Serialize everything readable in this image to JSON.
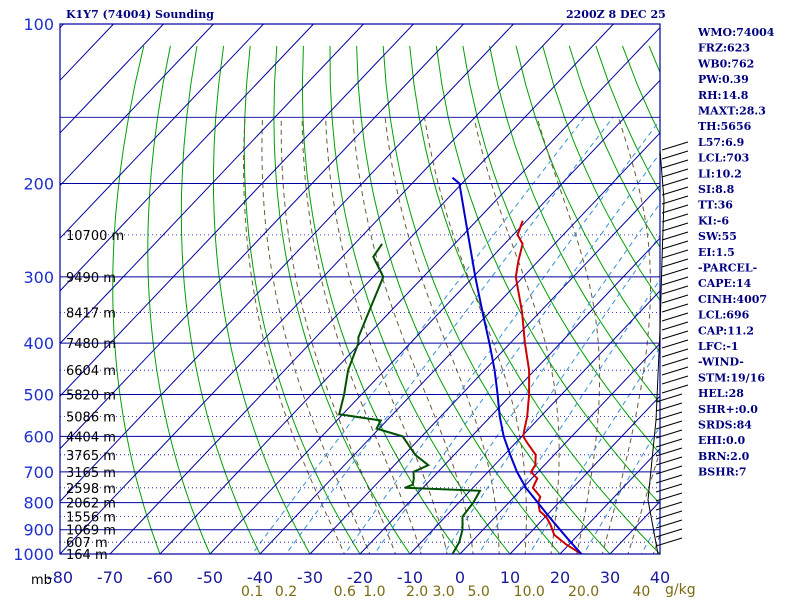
{
  "header": {
    "station": "K1Y7 (74004) Sounding",
    "time": "2200Z  8 DEC 25"
  },
  "indices": [
    "WMO:74004",
    "FRZ:623",
    "WB0:762",
    "PW:0.39",
    "RH:14.8",
    "MAXT:28.3",
    "TH:5656",
    "L57:6.9",
    "LCL:703",
    "LI:10.2",
    "SI:8.8",
    "TT:36",
    "KI:-6",
    "SW:55",
    "EI:1.5",
    "-PARCEL-",
    "CAPE:14",
    "CINH:4007",
    "LCL:696",
    "CAP:11.2",
    "LFC:-1",
    "-WIND-",
    "STM:19/16",
    "HEL:28",
    "SHR+:0.0",
    "SRDS:84",
    "EHI:0.0",
    "BRN:2.0",
    "BSHR:7"
  ],
  "colors": {
    "frame": "#0000a0",
    "isotherm": "#0000a0",
    "dry_adiabat": "#00a000",
    "moist_adiabat": "#6b5a3a",
    "mixing_ratio": "#3a8fd0",
    "temperature": "#cc0000",
    "dewpoint": "#005000",
    "parcel": "#0000cc",
    "wind": "#000000"
  },
  "chart_data": {
    "type": "line",
    "chart_kind": "skew-T log-P sounding",
    "y_scale": "log",
    "ylim": [
      1000,
      100
    ],
    "xlim": [
      -80,
      40
    ],
    "y_axis_unit": "mb",
    "pressure_ticks": [
      1000,
      900,
      800,
      700,
      600,
      500,
      400,
      300,
      200,
      100
    ],
    "temperature_ticks": [
      -80,
      -70,
      -60,
      -50,
      -40,
      -30,
      -20,
      -10,
      0,
      10,
      20,
      30,
      40
    ],
    "mixing_ratio_ticks": [
      "0.1",
      "0.2",
      "0.6",
      "1.0",
      "2.0",
      "3.0",
      "5.0",
      "10.0",
      "20.0",
      "40"
    ],
    "mixing_ratio_unit": "g/kg",
    "heights": [
      {
        "p": 1000,
        "label": "164 m"
      },
      {
        "p": 950,
        "label": "607 m"
      },
      {
        "p": 900,
        "label": "1069 m"
      },
      {
        "p": 850,
        "label": "1556 m"
      },
      {
        "p": 800,
        "label": "2062 m"
      },
      {
        "p": 750,
        "label": "2598 m"
      },
      {
        "p": 700,
        "label": "3165 m"
      },
      {
        "p": 650,
        "label": "3765 m"
      },
      {
        "p": 600,
        "label": "4404 m"
      },
      {
        "p": 550,
        "label": "5086 m"
      },
      {
        "p": 500,
        "label": "5820 m"
      },
      {
        "p": 450,
        "label": "6604 m"
      },
      {
        "p": 400,
        "label": "7480 m"
      },
      {
        "p": 350,
        "label": "8417 m"
      },
      {
        "p": 300,
        "label": "9490 m"
      },
      {
        "p": 250,
        "label": "10700 m"
      }
    ],
    "series": [
      {
        "key": "temperature",
        "points": [
          [
            1000,
            24.3
          ],
          [
            960,
            19.5
          ],
          [
            920,
            15.2
          ],
          [
            880,
            12.5
          ],
          [
            850,
            10.1
          ],
          [
            830,
            7.8
          ],
          [
            800,
            5.9
          ],
          [
            780,
            5.2
          ],
          [
            750,
            2.0
          ],
          [
            740,
            1.7
          ],
          [
            720,
            1.1
          ],
          [
            700,
            -1.4
          ],
          [
            680,
            -1.8
          ],
          [
            650,
            -3.7
          ],
          [
            620,
            -7.3
          ],
          [
            600,
            -9.7
          ],
          [
            580,
            -10.9
          ],
          [
            550,
            -12.7
          ],
          [
            500,
            -16.5
          ],
          [
            450,
            -21.1
          ],
          [
            400,
            -27.1
          ],
          [
            350,
            -33.5
          ],
          [
            300,
            -41.5
          ],
          [
            280,
            -44.0
          ],
          [
            260,
            -46.4
          ],
          [
            250,
            -49.1
          ],
          [
            235,
            -50.8
          ]
        ]
      },
      {
        "key": "dewpoint",
        "points": [
          [
            1000,
            -1.5
          ],
          [
            950,
            -2.4
          ],
          [
            900,
            -4.1
          ],
          [
            850,
            -6.6
          ],
          [
            800,
            -7.1
          ],
          [
            760,
            -8.0
          ],
          [
            750,
            -23.6
          ],
          [
            740,
            -22.6
          ],
          [
            720,
            -23.6
          ],
          [
            700,
            -24.9
          ],
          [
            680,
            -23.2
          ],
          [
            650,
            -27.8
          ],
          [
            600,
            -33.8
          ],
          [
            580,
            -40.5
          ],
          [
            560,
            -41.2
          ],
          [
            545,
            -50.7
          ],
          [
            500,
            -53.5
          ],
          [
            450,
            -57.3
          ],
          [
            400,
            -60.4
          ],
          [
            390,
            -61.5
          ],
          [
            350,
            -64.2
          ],
          [
            300,
            -68.0
          ],
          [
            275,
            -73.8
          ],
          [
            260,
            -74.5
          ]
        ]
      },
      {
        "key": "parcel",
        "points": [
          [
            1000,
            24.3
          ],
          [
            950,
            19.9
          ],
          [
            900,
            15.4
          ],
          [
            850,
            10.7
          ],
          [
            800,
            5.8
          ],
          [
            750,
            0.6
          ],
          [
            700,
            -4.2
          ],
          [
            650,
            -8.8
          ],
          [
            600,
            -13.6
          ],
          [
            550,
            -18.2
          ],
          [
            500,
            -22.8
          ],
          [
            450,
            -28.0
          ],
          [
            400,
            -34.2
          ],
          [
            350,
            -41.4
          ],
          [
            300,
            -49.6
          ],
          [
            250,
            -59.0
          ],
          [
            200,
            -70.5
          ],
          [
            195,
            -73.0
          ]
        ]
      }
    ]
  }
}
